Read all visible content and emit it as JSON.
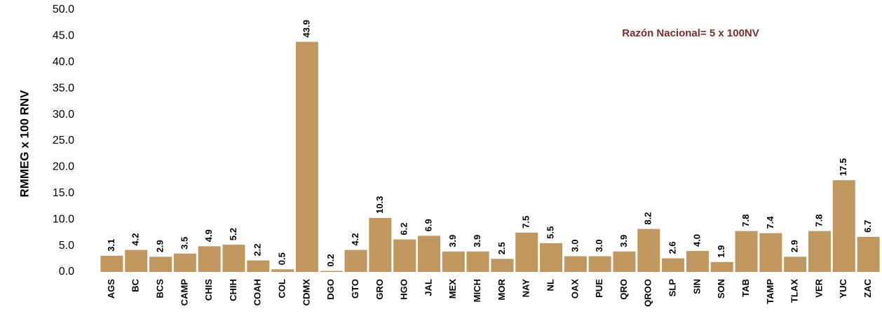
{
  "chart_data": {
    "type": "bar",
    "y_label": "RMMEG x 100 RNV",
    "annotation": "Razón Nacional= 5 x 100NV",
    "categories": [
      "AGS",
      "BC",
      "BCS",
      "CAMP",
      "CHIS",
      "CHIH",
      "COAH",
      "COL",
      "CDMX",
      "DGO",
      "GTO",
      "GRO",
      "HGO",
      "JAL",
      "MEX",
      "MICH",
      "MOR",
      "NAY",
      "NL",
      "OAX",
      "PUE",
      "QRO",
      "QROO",
      "SLP",
      "SIN",
      "SON",
      "TAB",
      "TAMP",
      "TLAX",
      "VER",
      "YUC",
      "ZAC"
    ],
    "values": [
      3.1,
      4.2,
      2.9,
      3.5,
      4.9,
      5.2,
      2.2,
      0.5,
      43.9,
      0.2,
      4.2,
      10.3,
      6.2,
      6.9,
      3.9,
      3.9,
      2.5,
      7.5,
      5.5,
      3.0,
      3.0,
      3.9,
      8.2,
      2.6,
      4.0,
      1.9,
      7.8,
      7.4,
      2.9,
      7.8,
      17.5,
      6.7
    ],
    "value_labels": [
      "3.1",
      "4.2",
      "2.9",
      "3.5",
      "4.9",
      "5.2",
      "2.2",
      "0.5",
      "43.9",
      "0.2",
      "4.2",
      "10.3",
      "6.2",
      "6.9",
      "3.9",
      "3.9",
      "2.5",
      "7.5",
      "5.5",
      "3.0",
      "3.0",
      "3.9",
      "8.2",
      "2.6",
      "4.0",
      "1.9",
      "7.8",
      "7.4",
      "2.9",
      "7.8",
      "17.5",
      "6.7"
    ],
    "color": "#c0975e",
    "ylim": [
      0,
      50
    ],
    "yticks": [
      {
        "value": 0,
        "label": "0.0"
      },
      {
        "value": 5,
        "label": "5.0"
      },
      {
        "value": 10,
        "label": "10.0"
      },
      {
        "value": 15,
        "label": "15.0"
      },
      {
        "value": 20,
        "label": "20.0"
      },
      {
        "value": 25,
        "label": "25.0"
      },
      {
        "value": 30,
        "label": "30.0"
      },
      {
        "value": 35,
        "label": "35.0"
      },
      {
        "value": 40,
        "label": "40.0"
      },
      {
        "value": 45,
        "label": "45.0"
      },
      {
        "value": 50,
        "label": "50.0"
      }
    ],
    "grid": false
  }
}
